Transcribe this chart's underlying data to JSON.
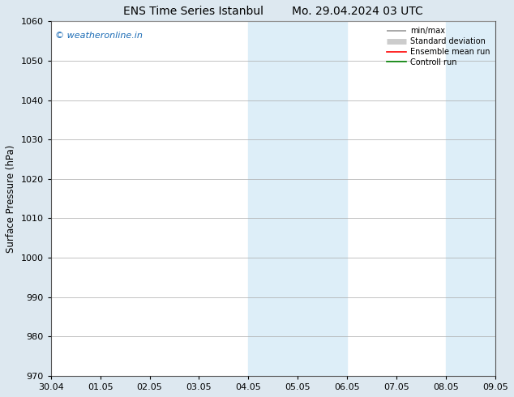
{
  "title_left": "ENS Time Series Istanbul",
  "title_right": "Mo. 29.04.2024 03 UTC",
  "ylabel": "Surface Pressure (hPa)",
  "ylim": [
    970,
    1060
  ],
  "yticks": [
    970,
    980,
    990,
    1000,
    1010,
    1020,
    1030,
    1040,
    1050,
    1060
  ],
  "xlabels": [
    "30.04",
    "01.05",
    "02.05",
    "03.05",
    "04.05",
    "05.05",
    "06.05",
    "07.05",
    "08.05",
    "09.05"
  ],
  "watermark": "© weatheronline.in",
  "shaded_bands": [
    {
      "xstart": 4,
      "xend": 6
    },
    {
      "xstart": 8,
      "xend": 9
    }
  ],
  "shade_color": "#ddeef8",
  "legend_items": [
    {
      "label": "min/max",
      "color": "#999999",
      "lw": 1.2
    },
    {
      "label": "Standard deviation",
      "color": "#cccccc",
      "lw": 5
    },
    {
      "label": "Ensemble mean run",
      "color": "#ff0000",
      "lw": 1.2
    },
    {
      "label": "Controll run",
      "color": "#008000",
      "lw": 1.2
    }
  ],
  "bg_color": "#dde8f0",
  "plot_bg_color": "#ffffff",
  "grid_color": "#aaaaaa",
  "title_fontsize": 10,
  "label_fontsize": 8.5,
  "tick_fontsize": 8,
  "watermark_color": "#1a6bb5",
  "watermark_fontsize": 8
}
